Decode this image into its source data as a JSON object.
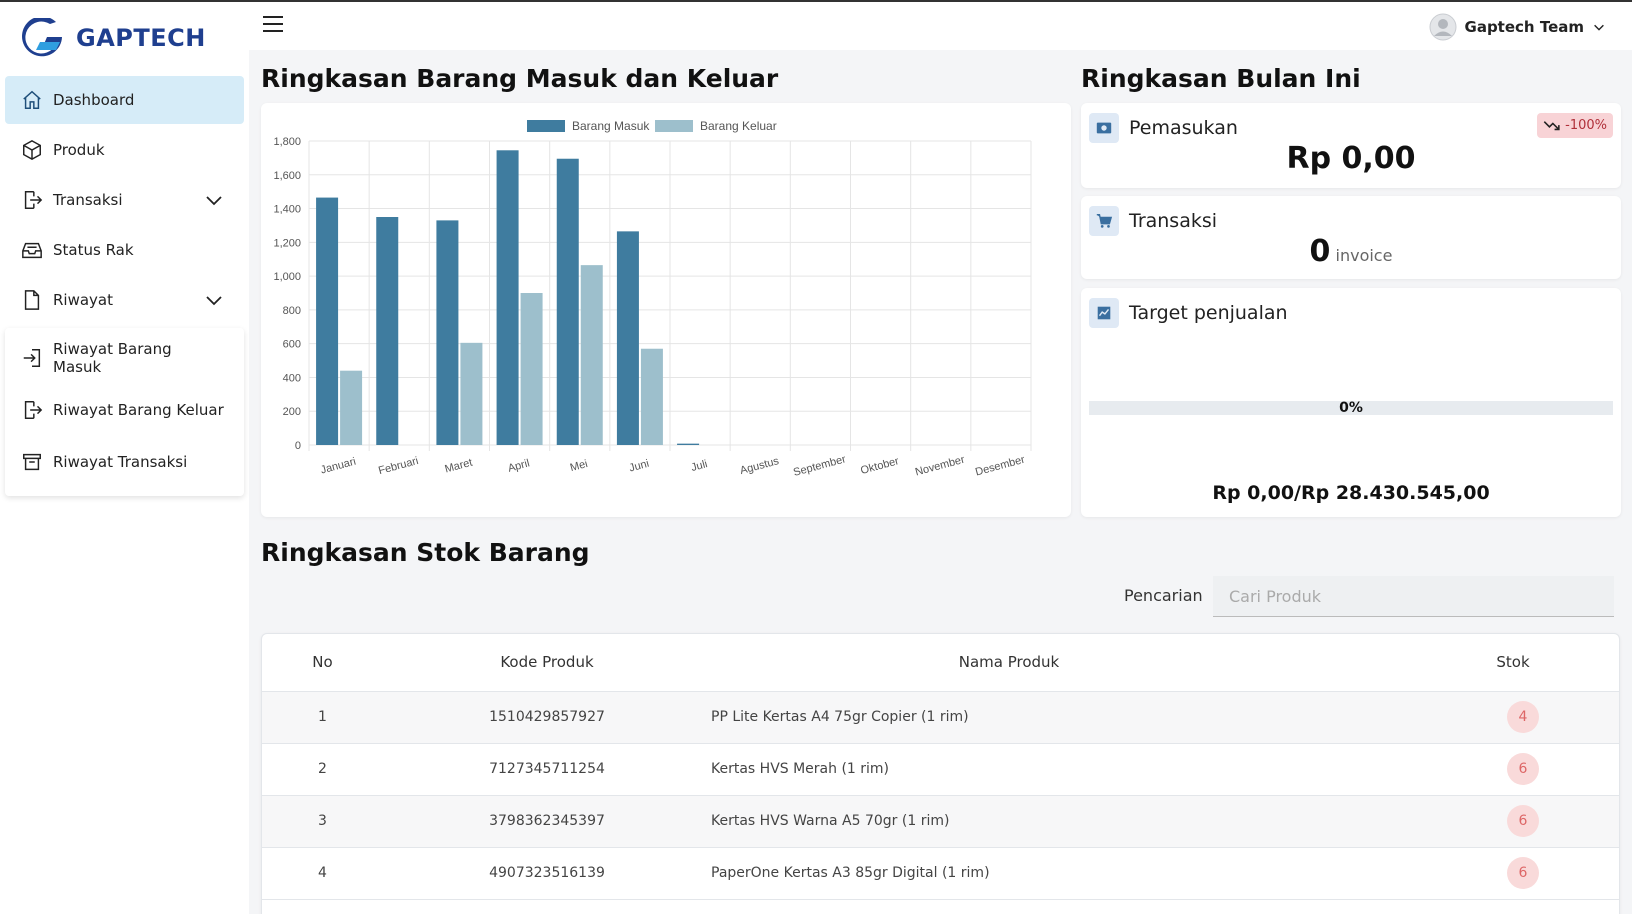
{
  "brand": {
    "name": "GAPTECH"
  },
  "sidebar": {
    "items": [
      {
        "label": "Dashboard",
        "icon": "home-icon"
      },
      {
        "label": "Produk",
        "icon": "box-icon"
      },
      {
        "label": "Transaksi",
        "icon": "exit-icon"
      },
      {
        "label": "Status Rak",
        "icon": "inbox-icon"
      },
      {
        "label": "Riwayat",
        "icon": "file-icon"
      }
    ],
    "submenu": [
      {
        "label": "Riwayat Barang Masuk",
        "icon": "login-icon"
      },
      {
        "label": "Riwayat Barang Keluar",
        "icon": "logout-icon"
      },
      {
        "label": "Riwayat Transaksi",
        "icon": "archive-icon"
      }
    ]
  },
  "topbar": {
    "user": "Gaptech Team"
  },
  "main": {
    "chart_title": "Ringkasan Barang Masuk dan Keluar",
    "summary_title": "Ringkasan Bulan Ini",
    "stock_title": "Ringkasan Stok Barang"
  },
  "summary": {
    "income": {
      "label": "Pemasukan",
      "value": "Rp 0,00",
      "badge": "-100%"
    },
    "transactions": {
      "label": "Transaksi",
      "count": "0",
      "unit": "invoice"
    },
    "target": {
      "label": "Target penjualan",
      "percent_label": "0%",
      "progress": 0,
      "amount": "Rp 0,00/Rp 28.430.545,00"
    }
  },
  "search": {
    "label": "Pencarian",
    "placeholder": "Cari Produk"
  },
  "table": {
    "headers": [
      "No",
      "Kode Produk",
      "Nama Produk",
      "Stok"
    ],
    "rows": [
      {
        "no": "1",
        "kode": "1510429857927",
        "nama": "PP Lite Kertas A4 75gr Copier (1 rim)",
        "stok": "4"
      },
      {
        "no": "2",
        "kode": "7127345711254",
        "nama": "Kertas HVS Merah (1 rim)",
        "stok": "6"
      },
      {
        "no": "3",
        "kode": "3798362345397",
        "nama": "Kertas HVS Warna A5 70gr (1 rim)",
        "stok": "6"
      },
      {
        "no": "4",
        "kode": "4907323516139",
        "nama": "PaperOne Kertas A3 85gr Digital (1 rim)",
        "stok": "6"
      }
    ]
  },
  "colors": {
    "masuk": "#3f7c9f",
    "keluar": "#9dbfcc",
    "brand": "#1f3f8f",
    "active_nav": "#d6ecf8"
  },
  "chart_data": {
    "type": "bar",
    "categories": [
      "Januari",
      "Februari",
      "Maret",
      "April",
      "Mei",
      "Juni",
      "Juli",
      "Agustus",
      "September",
      "Oktober",
      "November",
      "Desember"
    ],
    "series": [
      {
        "name": "Barang Masuk",
        "values": [
          1465,
          1350,
          1330,
          1745,
          1695,
          1265,
          8,
          0,
          0,
          0,
          0,
          0
        ]
      },
      {
        "name": "Barang Keluar",
        "values": [
          440,
          0,
          605,
          900,
          1065,
          570,
          0,
          0,
          0,
          0,
          0,
          0
        ]
      }
    ],
    "yticks": [
      "0",
      "200",
      "400",
      "600",
      "800",
      "1,000",
      "1,200",
      "1,400",
      "1,600",
      "1,800"
    ],
    "ylim": [
      0,
      1800
    ],
    "grid": true,
    "legend": "top"
  }
}
